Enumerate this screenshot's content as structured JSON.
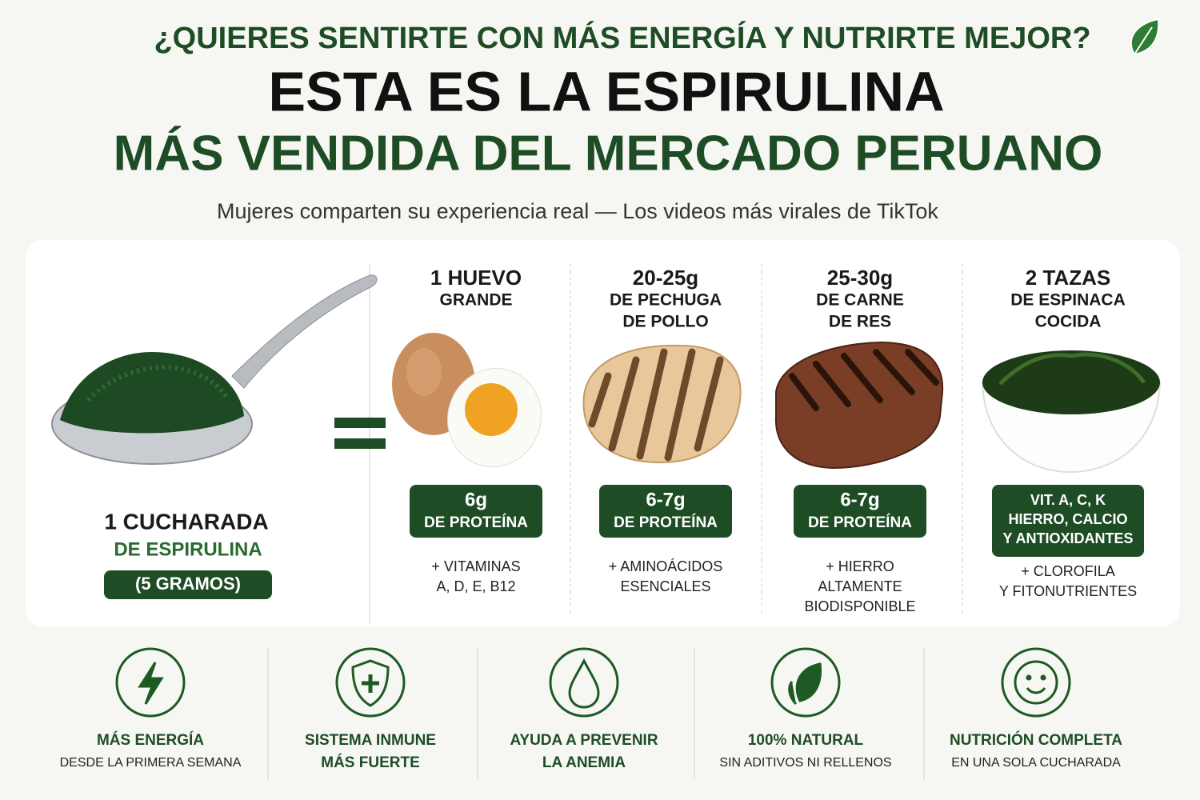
{
  "header": {
    "question": "¿QUIERES SENTIRTE CON MÁS ENERGÍA Y NUTRIRTE MEJOR?",
    "title_line1": "ESTA ES LA ESPIRULINA",
    "title_line2": "MÁS VENDIDA DEL MERCADO PERUANO",
    "subtitle": "Mujeres comparten su experiencia real — Los videos más virales de TikTok"
  },
  "spirulina": {
    "amount": "1 CUCHARADA",
    "name": "DE ESPIRULINA",
    "weight": "(5 GRAMOS)"
  },
  "equivalents": [
    {
      "title": [
        "1 HUEVO",
        "GRANDE"
      ],
      "badge": [
        "6g",
        "DE PROTEÍNA"
      ],
      "note": [
        "+ VITAMINAS",
        "A, D, E, B12"
      ]
    },
    {
      "title": [
        "20-25g",
        "DE PECHUGA",
        "DE POLLO"
      ],
      "badge": [
        "6-7g",
        "DE PROTEÍNA"
      ],
      "note": [
        "+ AMINOÁCIDOS",
        "ESENCIALES"
      ]
    },
    {
      "title": [
        "25-30g",
        "DE CARNE",
        "DE RES"
      ],
      "badge": [
        "6-7g",
        "DE PROTEÍNA"
      ],
      "note": [
        "+ HIERRO",
        "ALTAMENTE",
        "BIODISPONIBLE"
      ]
    },
    {
      "title": [
        "2 TAZAS",
        "DE ESPINACA",
        "COCIDA"
      ],
      "badge": [
        "VIT. A, C, K",
        "HIERRO, CALCIO",
        "Y ANTIOXIDANTES"
      ],
      "note": [
        "+ CLOROFILA",
        "Y FITONUTRIENTES"
      ]
    }
  ],
  "benefits": [
    {
      "title": "MÁS ENERGÍA",
      "subtitle": "DESDE LA PRIMERA SEMANA"
    },
    {
      "title": "SISTEMA INMUNE",
      "subtitle": "MÁS FUERTE"
    },
    {
      "title": "AYUDA A PREVENIR",
      "subtitle": "LA ANEMIA"
    },
    {
      "title": "100% NATURAL",
      "subtitle": "SIN ADITIVOS NI RELLENOS"
    },
    {
      "title": "NUTRICIÓN COMPLETA",
      "subtitle": "EN UNA SOLA CUCHARADA"
    }
  ]
}
